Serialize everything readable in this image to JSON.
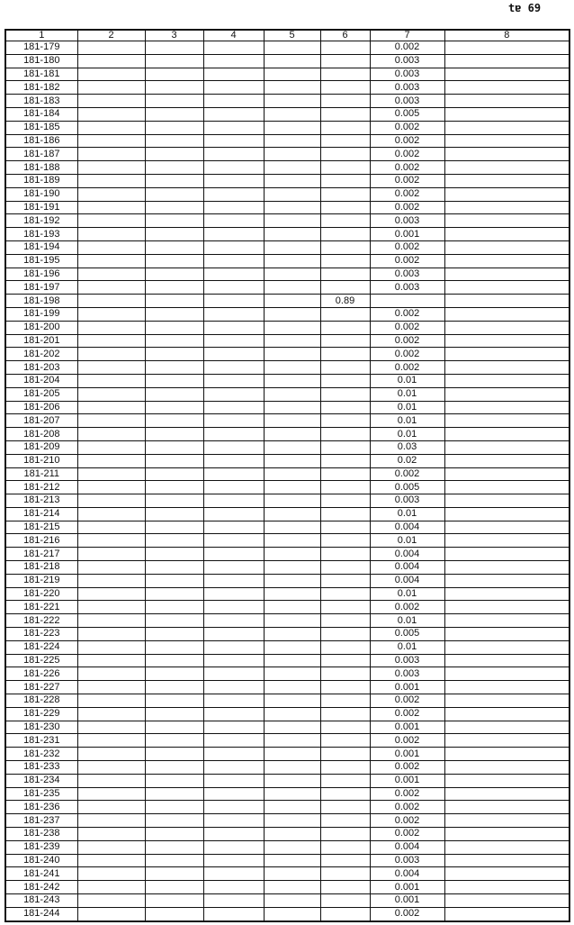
{
  "page_number": "tɐ 69",
  "table": {
    "headers": [
      "1",
      "2",
      "3",
      "4",
      "5",
      "6",
      "7",
      "8"
    ],
    "rows": [
      [
        "181-179",
        "",
        "",
        "",
        "",
        "",
        "0.002",
        ""
      ],
      [
        "181-180",
        "",
        "",
        "",
        "",
        "",
        "0.003",
        ""
      ],
      [
        "181-181",
        "",
        "",
        "",
        "",
        "",
        "0.003",
        ""
      ],
      [
        "181-182",
        "",
        "",
        "",
        "",
        "",
        "0.003",
        ""
      ],
      [
        "181-183",
        "",
        "",
        "",
        "",
        "",
        "0.003",
        ""
      ],
      [
        "181-184",
        "",
        "",
        "",
        "",
        "",
        "0.005",
        ""
      ],
      [
        "181-185",
        "",
        "",
        "",
        "",
        "",
        "0.002",
        ""
      ],
      [
        "181-186",
        "",
        "",
        "",
        "",
        "",
        "0.002",
        ""
      ],
      [
        "181-187",
        "",
        "",
        "",
        "",
        "",
        "0.002",
        ""
      ],
      [
        "181-188",
        "",
        "",
        "",
        "",
        "",
        "0.002",
        ""
      ],
      [
        "181-189",
        "",
        "",
        "",
        "",
        "",
        "0.002",
        ""
      ],
      [
        "181-190",
        "",
        "",
        "",
        "",
        "",
        "0.002",
        ""
      ],
      [
        "181-191",
        "",
        "",
        "",
        "",
        "",
        "0.002",
        ""
      ],
      [
        "181-192",
        "",
        "",
        "",
        "",
        "",
        "0.003",
        ""
      ],
      [
        "181-193",
        "",
        "",
        "",
        "",
        "",
        "0.001",
        ""
      ],
      [
        "181-194",
        "",
        "",
        "",
        "",
        "",
        "0.002",
        ""
      ],
      [
        "181-195",
        "",
        "",
        "",
        "",
        "",
        "0.002",
        ""
      ],
      [
        "181-196",
        "",
        "",
        "",
        "",
        "",
        "0.003",
        ""
      ],
      [
        "181-197",
        "",
        "",
        "",
        "",
        "",
        "0.003",
        ""
      ],
      [
        "181-198",
        "",
        "",
        "",
        "",
        "0.89",
        "",
        ""
      ],
      [
        "181-199",
        "",
        "",
        "",
        "",
        "",
        "0.002",
        ""
      ],
      [
        "181-200",
        "",
        "",
        "",
        "",
        "",
        "0.002",
        ""
      ],
      [
        "181-201",
        "",
        "",
        "",
        "",
        "",
        "0.002",
        ""
      ],
      [
        "181-202",
        "",
        "",
        "",
        "",
        "",
        "0.002",
        ""
      ],
      [
        "181-203",
        "",
        "",
        "",
        "",
        "",
        "0.002",
        ""
      ],
      [
        "181-204",
        "",
        "",
        "",
        "",
        "",
        "0.01",
        ""
      ],
      [
        "181-205",
        "",
        "",
        "",
        "",
        "",
        "0.01",
        ""
      ],
      [
        "181-206",
        "",
        "",
        "",
        "",
        "",
        "0.01",
        ""
      ],
      [
        "181-207",
        "",
        "",
        "",
        "",
        "",
        "0.01",
        ""
      ],
      [
        "181-208",
        "",
        "",
        "",
        "",
        "",
        "0.01",
        ""
      ],
      [
        "181-209",
        "",
        "",
        "",
        "",
        "",
        "0.03",
        ""
      ],
      [
        "181-210",
        "",
        "",
        "",
        "",
        "",
        "0.02",
        ""
      ],
      [
        "181-211",
        "",
        "",
        "",
        "",
        "",
        "0.002",
        ""
      ],
      [
        "181-212",
        "",
        "",
        "",
        "",
        "",
        "0.005",
        ""
      ],
      [
        "181-213",
        "",
        "",
        "",
        "",
        "",
        "0.003",
        ""
      ],
      [
        "181-214",
        "",
        "",
        "",
        "",
        "",
        "0.01",
        ""
      ],
      [
        "181-215",
        "",
        "",
        "",
        "",
        "",
        "0.004",
        ""
      ],
      [
        "181-216",
        "",
        "",
        "",
        "",
        "",
        "0.01",
        ""
      ],
      [
        "181-217",
        "",
        "",
        "",
        "",
        "",
        "0.004",
        ""
      ],
      [
        "181-218",
        "",
        "",
        "",
        "",
        "",
        "0.004",
        ""
      ],
      [
        "181-219",
        "",
        "",
        "",
        "",
        "",
        "0.004",
        ""
      ],
      [
        "181-220",
        "",
        "",
        "",
        "",
        "",
        "0.01",
        ""
      ],
      [
        "181-221",
        "",
        "",
        "",
        "",
        "",
        "0.002",
        ""
      ],
      [
        "181-222",
        "",
        "",
        "",
        "",
        "",
        "0.01",
        ""
      ],
      [
        "181-223",
        "",
        "",
        "",
        "",
        "",
        "0.005",
        ""
      ],
      [
        "181-224",
        "",
        "",
        "",
        "",
        "",
        "0.01",
        ""
      ],
      [
        "181-225",
        "",
        "",
        "",
        "",
        "",
        "0.003",
        ""
      ],
      [
        "181-226",
        "",
        "",
        "",
        "",
        "",
        "0.003",
        ""
      ],
      [
        "181-227",
        "",
        "",
        "",
        "",
        "",
        "0.001",
        ""
      ],
      [
        "181-228",
        "",
        "",
        "",
        "",
        "",
        "0.002",
        ""
      ],
      [
        "181-229",
        "",
        "",
        "",
        "",
        "",
        "0.002",
        ""
      ],
      [
        "181-230",
        "",
        "",
        "",
        "",
        "",
        "0.001",
        ""
      ],
      [
        "181-231",
        "",
        "",
        "",
        "",
        "",
        "0.002",
        ""
      ],
      [
        "181-232",
        "",
        "",
        "",
        "",
        "",
        "0.001",
        ""
      ],
      [
        "181-233",
        "",
        "",
        "",
        "",
        "",
        "0.002",
        ""
      ],
      [
        "181-234",
        "",
        "",
        "",
        "",
        "",
        "0.001",
        ""
      ],
      [
        "181-235",
        "",
        "",
        "",
        "",
        "",
        "0.002",
        ""
      ],
      [
        "181-236",
        "",
        "",
        "",
        "",
        "",
        "0.002",
        ""
      ],
      [
        "181-237",
        "",
        "",
        "",
        "",
        "",
        "0.002",
        ""
      ],
      [
        "181-238",
        "",
        "",
        "",
        "",
        "",
        "0.002",
        ""
      ],
      [
        "181-239",
        "",
        "",
        "",
        "",
        "",
        "0.004",
        ""
      ],
      [
        "181-240",
        "",
        "",
        "",
        "",
        "",
        "0.003",
        ""
      ],
      [
        "181-241",
        "",
        "",
        "",
        "",
        "",
        "0.004",
        ""
      ],
      [
        "181-242",
        "",
        "",
        "",
        "",
        "",
        "0.001",
        ""
      ],
      [
        "181-243",
        "",
        "",
        "",
        "",
        "",
        "0.001",
        ""
      ],
      [
        "181-244",
        "",
        "",
        "",
        "",
        "",
        "0.002",
        ""
      ]
    ]
  }
}
